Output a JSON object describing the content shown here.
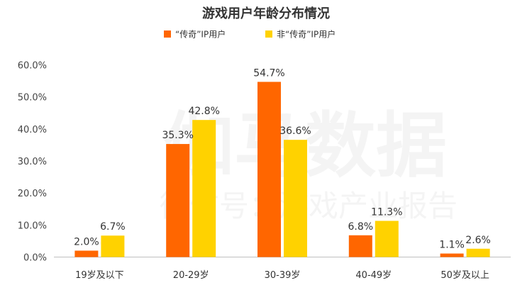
{
  "watermark": {
    "line1": "伽马数据",
    "line2": "微信号：游戏产业报告"
  },
  "chart_data": {
    "type": "bar",
    "title": "游戏用户年龄分布情况",
    "categories": [
      "19岁及以下",
      "20-29岁",
      "30-39岁",
      "40-49岁",
      "50岁及以上"
    ],
    "series": [
      {
        "name": "“传奇”IP用户",
        "color": "#FF6600",
        "values": [
          2.0,
          35.3,
          54.7,
          6.8,
          1.1
        ]
      },
      {
        "name": "非“传奇”IP用户",
        "color": "#FFD200",
        "values": [
          6.7,
          42.8,
          36.6,
          11.3,
          2.6
        ]
      }
    ],
    "ylim": [
      0,
      60
    ],
    "yticks": [
      0,
      10,
      20,
      30,
      40,
      50,
      60
    ],
    "ytick_labels": [
      "0.0%",
      "10.0%",
      "20.0%",
      "30.0%",
      "40.0%",
      "50.0%",
      "60.0%"
    ],
    "value_suffix": "%",
    "legend_position": "top",
    "grid": false,
    "xlabel": "",
    "ylabel": ""
  }
}
